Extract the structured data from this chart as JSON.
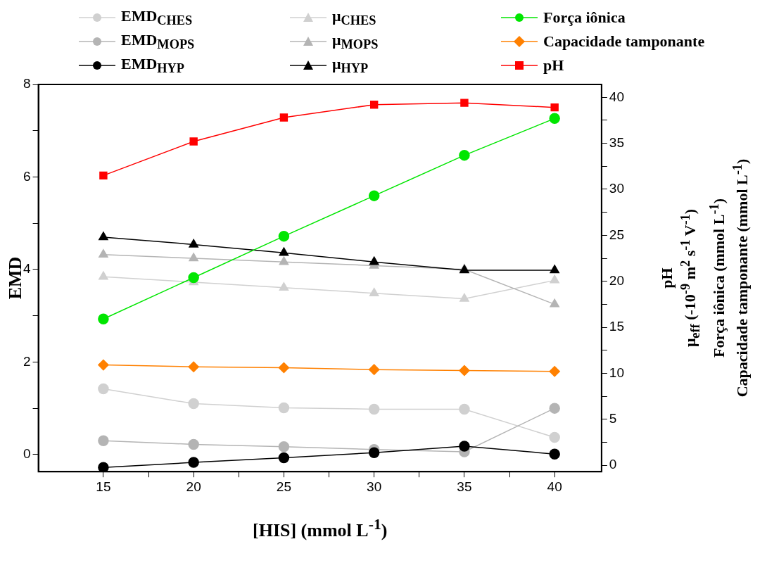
{
  "chart_data": {
    "type": "line",
    "xlabel": "[HIS] (mmol L$^{-1}$)",
    "ylabel": "EMD",
    "y2label": "pH\nμ$_{eff}$ (-10$^{-9}$ m$^{2}$ s$^{-1}$ V$^{-1}$)\nForça iônica (mmol L$^{-1}$)\nCapacidade tamponante (mmol L$^{-1}$)",
    "x": [
      15,
      20,
      25,
      30,
      35,
      40
    ],
    "xlim": [
      11.4,
      42.6
    ],
    "xticks": [
      15,
      {
        "value": 17.5,
        "label": null
      },
      20,
      {
        "value": 22.5,
        "label": null
      },
      25,
      {
        "value": 27.5,
        "label": null
      },
      30,
      {
        "value": 32.5,
        "label": null
      },
      35,
      {
        "value": 37.5,
        "label": null
      },
      40
    ],
    "ylim": [
      -0.37,
      8
    ],
    "yticks": [
      0,
      {
        "value": 1,
        "label": null
      },
      2,
      {
        "value": 3,
        "label": null
      },
      4,
      {
        "value": 5,
        "label": null
      },
      6,
      {
        "value": 7,
        "label": null
      },
      8
    ],
    "y2lim": [
      -0.7,
      41.4
    ],
    "y2ticks": [
      0,
      {
        "value": 2.5,
        "label": null
      },
      5,
      {
        "value": 7.5,
        "label": null
      },
      10,
      {
        "value": 12.5,
        "label": null
      },
      15,
      {
        "value": 17.5,
        "label": null
      },
      20,
      {
        "value": 22.5,
        "label": null
      },
      25,
      {
        "value": 27.5,
        "label": null
      },
      30,
      {
        "value": 32.5,
        "label": null
      },
      35,
      {
        "value": 37.5,
        "label": null
      },
      40
    ],
    "grid": false,
    "legend": "top",
    "series": [
      {
        "name": "EMD$_{CHES}$",
        "color": "#d0d0d0",
        "marker": "circle",
        "values": [
          1.42,
          1.1,
          1.01,
          0.98,
          0.98,
          0.37
        ]
      },
      {
        "name": "EMD$_{MOPS}$",
        "color": "#b4b4b4",
        "marker": "circle",
        "values": [
          0.3,
          0.22,
          0.17,
          0.11,
          0.06,
          1.0
        ]
      },
      {
        "name": "EMD$_{HYP}$",
        "color": "#000000",
        "marker": "circle",
        "values": [
          -0.28,
          -0.17,
          -0.07,
          0.04,
          0.18,
          0.01
        ]
      },
      {
        "name": "μ$_{CHES}$",
        "color": "#d0d0d0",
        "marker": "triangle",
        "axis": "y2",
        "values": [
          20.5,
          19.9,
          19.3,
          18.7,
          18.1,
          20.1
        ]
      },
      {
        "name": "μ$_{MOPS}$",
        "color": "#b4b4b4",
        "marker": "triangle",
        "axis": "y2",
        "values": [
          22.9,
          22.5,
          22.1,
          21.7,
          21.3,
          17.5
        ]
      },
      {
        "name": "μ$_{HYP}$",
        "color": "#000000",
        "marker": "triangle",
        "axis": "y2",
        "values": [
          24.8,
          24.0,
          23.1,
          22.1,
          21.2,
          21.2
        ]
      },
      {
        "name": "Força iônica",
        "color": "#00e600",
        "marker": "circle",
        "axis": "y2",
        "values": [
          15.9,
          20.4,
          24.9,
          29.3,
          33.7,
          37.7
        ]
      },
      {
        "name": "Capacidade tamponante",
        "color": "#ff8000",
        "marker": "diamond",
        "axis": "y2",
        "values": [
          10.9,
          10.7,
          10.6,
          10.4,
          10.3,
          10.2
        ]
      },
      {
        "name": "pH",
        "color": "#ff0000",
        "marker": "square",
        "axis": "y2",
        "values": [
          31.5,
          35.2,
          37.8,
          39.2,
          39.4,
          38.9
        ]
      }
    ]
  }
}
